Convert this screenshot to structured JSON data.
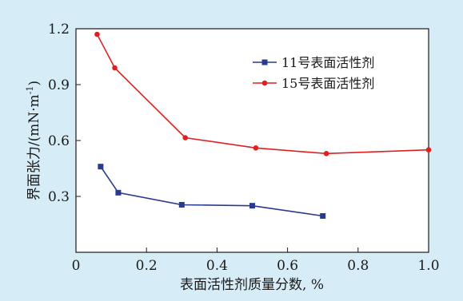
{
  "chart_data": {
    "type": "line",
    "xlabel": "表面活性剂质量分数, %",
    "ylabel_main": "界面张力/(mN·m",
    "ylabel_sup": "-1",
    "ylabel_tail": ")",
    "xlim": [
      0,
      1.0
    ],
    "ylim": [
      0,
      1.2
    ],
    "xticks": [
      0,
      0.2,
      0.4,
      0.6,
      0.8,
      1.0
    ],
    "xtick_labels": [
      "0",
      "0.2",
      "0.4",
      "0.6",
      "0.8",
      "1.0"
    ],
    "yticks": [
      0.3,
      0.6,
      0.9,
      1.2
    ],
    "ytick_labels": [
      "0.3",
      "0.6",
      "0.9",
      "1.2"
    ],
    "grid": false,
    "legend_position": "top-right",
    "series": [
      {
        "name": "11号表面活性剂",
        "color": "#2a3a8c",
        "marker": "square",
        "x": [
          0.07,
          0.12,
          0.3,
          0.5,
          0.7
        ],
        "y": [
          0.46,
          0.32,
          0.255,
          0.25,
          0.195
        ]
      },
      {
        "name": "15号表面活性剂",
        "color": "#e02020",
        "marker": "circle",
        "x": [
          0.06,
          0.11,
          0.31,
          0.51,
          0.71,
          1.0
        ],
        "y": [
          1.17,
          0.99,
          0.615,
          0.56,
          0.53,
          0.55
        ]
      }
    ]
  }
}
